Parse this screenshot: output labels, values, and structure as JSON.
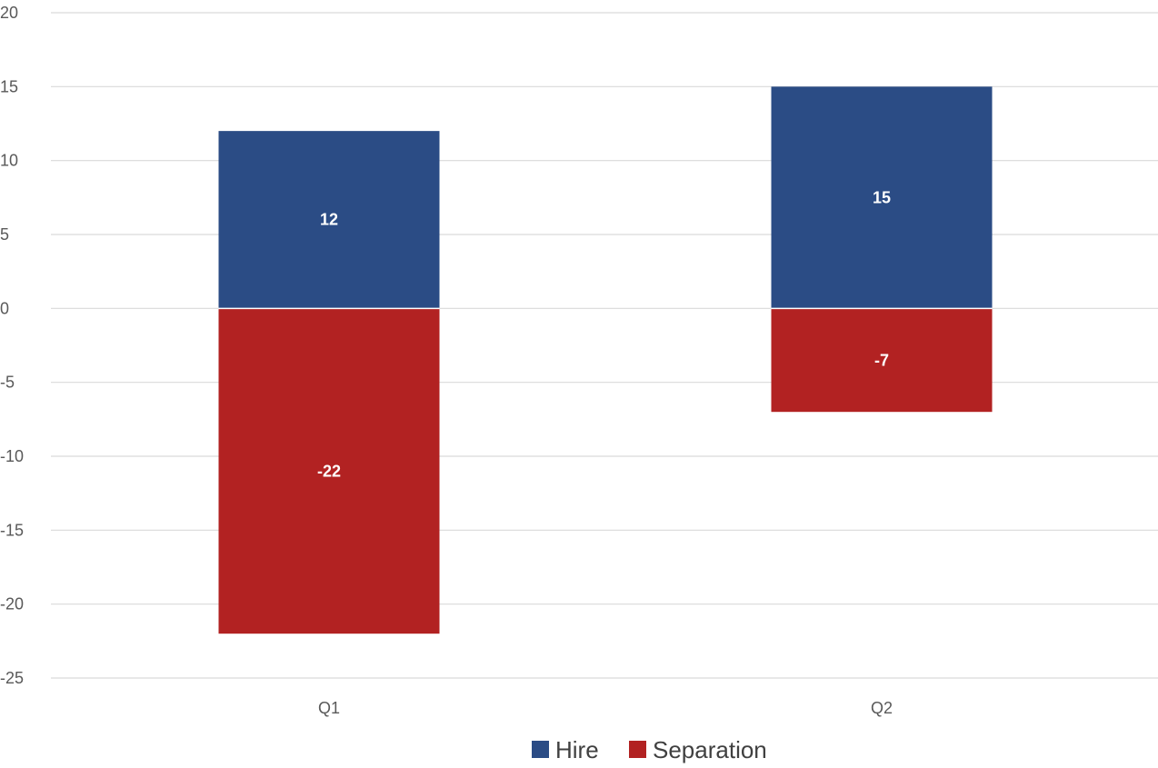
{
  "chart_data": {
    "type": "bar",
    "stacked": true,
    "categories": [
      "Q1",
      "Q2"
    ],
    "series": [
      {
        "name": "Hire",
        "values": [
          12,
          15
        ],
        "color": "#2B4C85"
      },
      {
        "name": "Separation",
        "values": [
          -22,
          -7
        ],
        "color": "#B22222"
      }
    ],
    "ylim": [
      -25,
      20
    ],
    "yticks": [
      20,
      15,
      10,
      5,
      0,
      -5,
      -10,
      -15,
      -20,
      -25
    ],
    "grid": true,
    "legend": "bottom",
    "gridline_color": "#d9d9d9"
  }
}
